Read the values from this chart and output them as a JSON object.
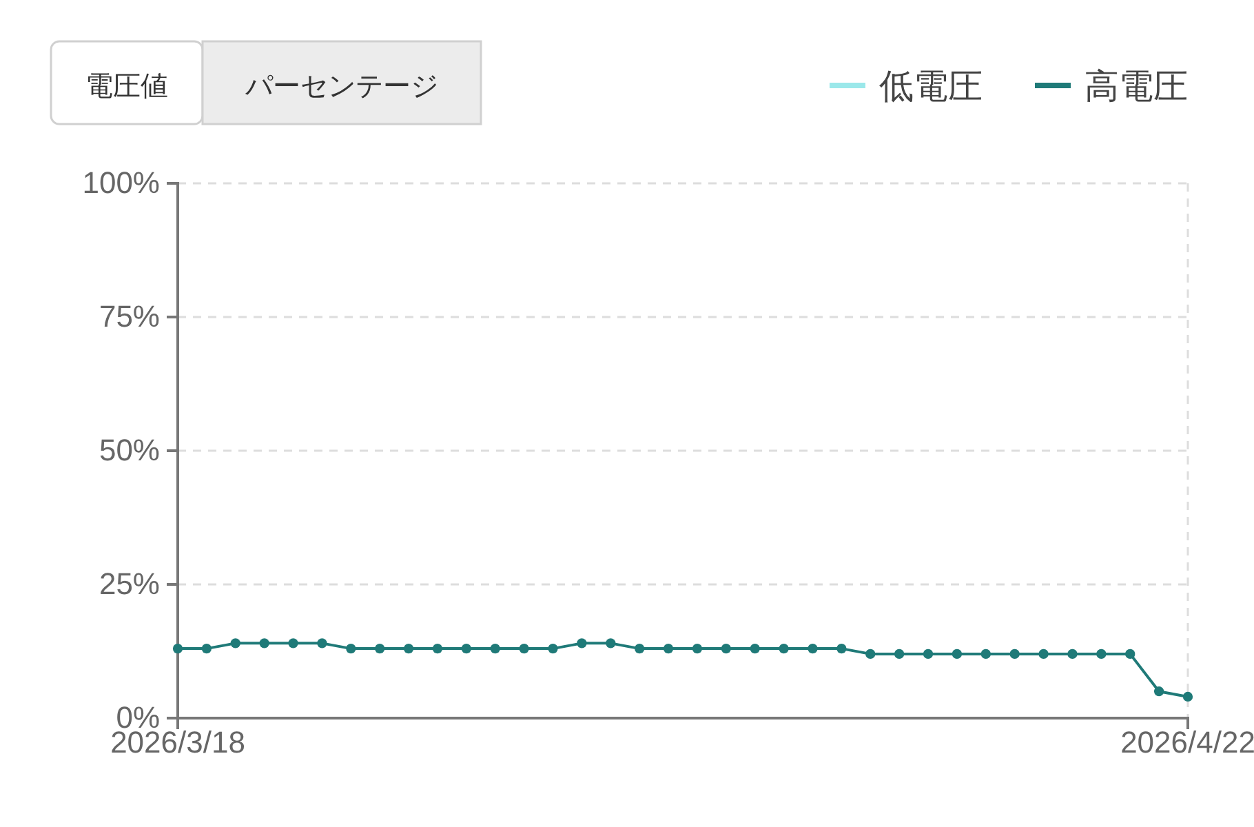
{
  "chart_data": {
    "type": "line",
    "annotations": [
      "電圧値",
      "パーセンテージ"
    ],
    "x": [
      "2026-03-18",
      "2026-03-19",
      "2026-03-20",
      "2026-03-21",
      "2026-03-22",
      "2026-03-23",
      "2026-03-24",
      "2026-03-25",
      "2026-03-26",
      "2026-03-27",
      "2026-03-28",
      "2026-03-29",
      "2026-03-30",
      "2026-03-31",
      "2026-04-01",
      "2026-04-02",
      "2026-04-03",
      "2026-04-04",
      "2026-04-05",
      "2026-04-06",
      "2026-04-07",
      "2026-04-08",
      "2026-04-09",
      "2026-04-10",
      "2026-04-11",
      "2026-04-12",
      "2026-04-13",
      "2026-04-14",
      "2026-04-15",
      "2026-04-16",
      "2026-04-17",
      "2026-04-18",
      "2026-04-19",
      "2026-04-20",
      "2026-04-21",
      "2026-04-22"
    ],
    "series": [
      {
        "name": "低電圧",
        "color": "#9be8ea",
        "values": [
          null,
          null,
          null,
          null,
          null,
          null,
          null,
          null,
          null,
          null,
          null,
          null,
          null,
          null,
          null,
          null,
          null,
          null,
          null,
          null,
          null,
          null,
          null,
          null,
          null,
          null,
          null,
          null,
          null,
          null,
          null,
          null,
          null,
          null,
          null,
          null
        ]
      },
      {
        "name": "高電圧",
        "color": "#1f7a78",
        "values": [
          13,
          13,
          14,
          14,
          14,
          14,
          13,
          13,
          13,
          13,
          13,
          13,
          13,
          13,
          14,
          14,
          13,
          13,
          13,
          13,
          13,
          13,
          13,
          13,
          12,
          12,
          12,
          12,
          12,
          12,
          12,
          12,
          12,
          12,
          5,
          4
        ]
      }
    ],
    "xlim": [
      "2026-03-18",
      "2026-04-22"
    ],
    "xticks": [
      {
        "value": "2026-03-18",
        "label": "2026/3/18"
      },
      {
        "value": "2026-04-22",
        "label": "2026/4/22"
      }
    ],
    "ylim": [
      0,
      100
    ],
    "yticks": [
      {
        "value": 0,
        "label": "0%"
      },
      {
        "value": 25,
        "label": "25%"
      },
      {
        "value": 50,
        "label": "50%"
      },
      {
        "value": 75,
        "label": "75%"
      },
      {
        "value": 100,
        "label": "100%"
      }
    ],
    "grid": "y",
    "legend": "top right",
    "marker": "circle",
    "line_style": "solid"
  }
}
